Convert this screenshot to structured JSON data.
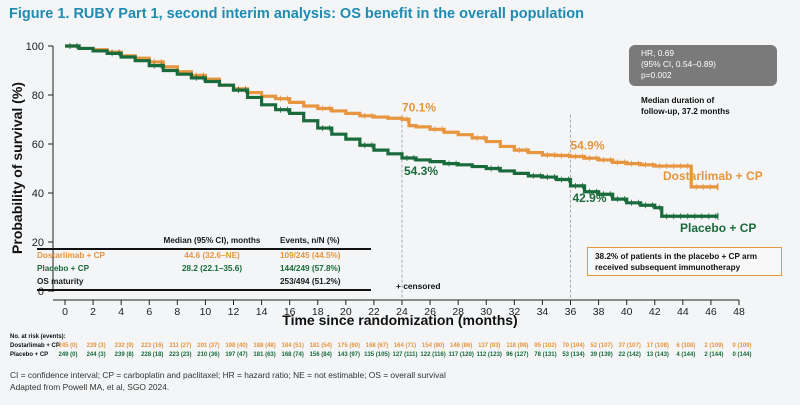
{
  "title": "Figure 1. RUBY Part 1, second interim analysis: OS benefit in the overall population",
  "hr_box": {
    "line1": "HR, 0.69",
    "line2": "(95% CI, 0.54–0.89)",
    "line3": "p=0.002"
  },
  "followup": {
    "line1": "Median duration of",
    "line2": "follow-up, 37.2 months"
  },
  "note": {
    "line1": "38.2% of patients in the placebo + CP arm",
    "line2": "received subsequent immunotherapy"
  },
  "censored_label": "+ censored",
  "summary_table": {
    "headers": [
      "",
      "Median (95% CI), months",
      "Events, n/N (%)"
    ],
    "rows": [
      {
        "label": "Dostarlimab + CP",
        "median": "44.6 (32.6–NE)",
        "events": "109/245 (44.5%)"
      },
      {
        "label": "Placebo + CP",
        "median": "28.2 (22.1–35.6)",
        "events": "144/249 (57.8%)"
      },
      {
        "label": "OS maturity",
        "median": "",
        "events": "253/494 (51.2%)"
      }
    ]
  },
  "at_risk": {
    "title": "No. at risk (events):",
    "rows": [
      {
        "label": "Dostarlimab + CP",
        "values": [
          "245 (0)",
          "239 (3)",
          "232 (9)",
          "223 (16)",
          "211 (27)",
          "201 (37)",
          "198 (40)",
          "188 (48)",
          "184 (51)",
          "181 (54)",
          "175 (60)",
          "168 (67)",
          "164 (71)",
          "154 (80)",
          "146 (86)",
          "137 (93)",
          "118 (98)",
          "95 (102)",
          "70 (104)",
          "52 (107)",
          "37 (107)",
          "17 (108)",
          "6 (108)",
          "2 (109)",
          "0 (109)"
        ]
      },
      {
        "label": "Placebo + CP",
        "values": [
          "249 (0)",
          "244 (3)",
          "239 (8)",
          "228 (18)",
          "223 (23)",
          "210 (36)",
          "197 (47)",
          "181 (63)",
          "168 (74)",
          "156 (84)",
          "143 (97)",
          "135 (105)",
          "127 (111)",
          "122 (116)",
          "117 (120)",
          "112 (123)",
          "96 (127)",
          "78 (131)",
          "53 (134)",
          "39 (139)",
          "22 (142)",
          "13 (143)",
          "4 (144)",
          "2 (144)",
          "0 (144)"
        ]
      }
    ]
  },
  "footer": {
    "line1": "CI = confidence interval; CP = carboplatin and paclitaxel; HR = hazard ratio; NE = not estimable; OS = overall survival",
    "line2": "Adapted from Powell MA, et al, SGO 2024."
  },
  "chart_data": {
    "type": "line",
    "title": "Figure 1. RUBY Part 1, second interim analysis: OS benefit in the overall population",
    "xlabel": "Time since randomization (months)",
    "ylabel": "Probability of survival (%)",
    "xlim": [
      0,
      48
    ],
    "ylim": [
      0,
      100
    ],
    "xticks": [
      0,
      2,
      4,
      6,
      8,
      10,
      12,
      14,
      16,
      18,
      20,
      22,
      24,
      26,
      28,
      30,
      32,
      34,
      36,
      38,
      40,
      42,
      44,
      46,
      48
    ],
    "yticks": [
      0,
      20,
      40,
      60,
      80,
      100
    ],
    "grid": false,
    "reference_lines_x": [
      24,
      36
    ],
    "series": [
      {
        "name": "Dostarlimab + CP",
        "color": "#e8953f",
        "x": [
          0,
          1,
          2,
          3,
          4,
          5,
          6,
          7,
          8,
          9,
          10,
          11,
          12,
          13,
          14,
          15,
          16,
          17,
          18,
          19,
          20,
          21,
          22,
          23,
          24,
          24.5,
          25,
          26,
          27,
          28,
          29,
          30,
          31,
          32,
          33,
          34,
          35,
          36,
          37,
          38,
          39,
          40,
          41,
          42,
          43,
          44.6,
          44.6,
          46.5
        ],
        "y": [
          100,
          99,
          98.5,
          97.5,
          96,
          95,
          93.5,
          91.5,
          89.5,
          88,
          86.5,
          84,
          82.5,
          81,
          79.5,
          78.5,
          77,
          75.5,
          74.5,
          73.5,
          72.5,
          71.5,
          71,
          70.5,
          70.1,
          67.5,
          67,
          66,
          64.8,
          63.8,
          62.5,
          61,
          59,
          57.5,
          56.5,
          55.5,
          55.3,
          54.9,
          54.2,
          53.5,
          52.5,
          52,
          51.5,
          51,
          51,
          51,
          42.5,
          42.5
        ]
      },
      {
        "name": "Placebo + CP",
        "color": "#1a6b3c",
        "x": [
          0,
          1,
          2,
          3,
          4,
          5,
          6,
          7,
          8,
          9,
          10,
          11,
          12,
          13,
          14,
          15,
          16,
          17,
          18,
          19,
          20,
          21,
          22,
          23,
          24,
          25,
          26,
          27,
          28,
          29,
          30,
          31,
          32,
          33,
          34,
          35,
          36,
          37,
          38,
          39,
          40,
          41,
          42,
          42.5,
          46.5
        ],
        "y": [
          100,
          99,
          98,
          97,
          95.5,
          94,
          92,
          90,
          88.5,
          87,
          85.5,
          84,
          82,
          79,
          76,
          74,
          72.5,
          69.5,
          66.5,
          64,
          62,
          59.5,
          57.5,
          56,
          54.3,
          53.5,
          52.8,
          52,
          51.5,
          50.8,
          50,
          49,
          48,
          47,
          46.5,
          45.5,
          42.9,
          40.5,
          39.5,
          37.5,
          36,
          35,
          34,
          30.5,
          30.5
        ]
      }
    ],
    "annotations": [
      {
        "text": "70.1%",
        "x": 24,
        "y": 70.1,
        "series": "Dostarlimab + CP"
      },
      {
        "text": "54.9%",
        "x": 36,
        "y": 54.9,
        "series": "Dostarlimab + CP"
      },
      {
        "text": "54.3%",
        "x": 24,
        "y": 54.3,
        "series": "Placebo + CP"
      },
      {
        "text": "42.9%",
        "x": 36,
        "y": 42.9,
        "series": "Placebo + CP"
      }
    ],
    "legend": [
      {
        "label": "Dostarlimab + CP",
        "placement": "right-of-curve"
      },
      {
        "label": "Placebo + CP",
        "placement": "right-of-curve"
      }
    ]
  }
}
